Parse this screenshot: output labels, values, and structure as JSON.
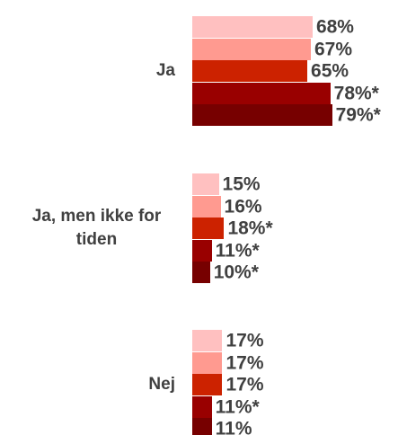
{
  "chart_data": {
    "type": "bar",
    "orientation": "horizontal",
    "categories": [
      "Ja",
      "Ja, men ikke for tiden",
      "Nej"
    ],
    "series": [
      {
        "color": "#ffc0c0",
        "values": [
          68,
          15,
          17
        ],
        "value_labels": [
          "68%",
          "15%",
          "17%"
        ]
      },
      {
        "color": "#ff9a90",
        "values": [
          67,
          16,
          17
        ],
        "value_labels": [
          "67%",
          "16%",
          "17%"
        ]
      },
      {
        "color": "#cc2200",
        "values": [
          65,
          18,
          17
        ],
        "value_labels": [
          "65%",
          "18%*",
          "17%"
        ]
      },
      {
        "color": "#990000",
        "values": [
          78,
          11,
          11
        ],
        "value_labels": [
          "78%*",
          "11%*",
          "11%*"
        ]
      },
      {
        "color": "#770000",
        "values": [
          79,
          10,
          11
        ],
        "value_labels": [
          "79%*",
          "10%*",
          "11%"
        ]
      }
    ]
  }
}
